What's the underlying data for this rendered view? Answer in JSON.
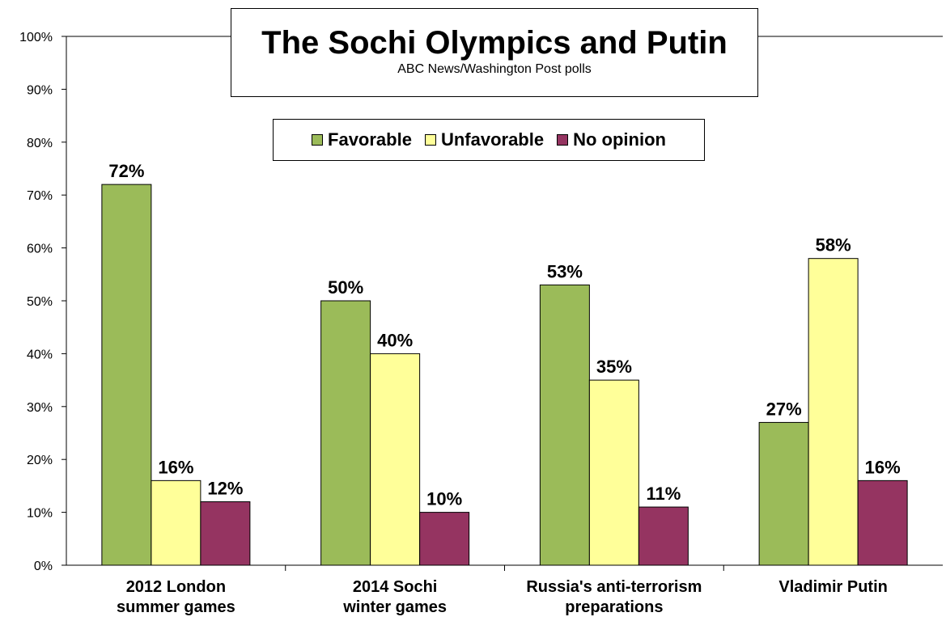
{
  "chart_data": {
    "type": "bar",
    "title": "The Sochi Olympics and Putin",
    "subtitle": "ABC News/Washington  Post polls",
    "categories": [
      [
        "2012 London",
        "summer games"
      ],
      [
        "2014 Sochi",
        "winter games"
      ],
      [
        "Russia's anti-terrorism",
        "preparations"
      ],
      [
        "Vladimir Putin"
      ]
    ],
    "series": [
      {
        "name": "Favorable",
        "color": "#9BBB59",
        "values": [
          72,
          50,
          53,
          27
        ]
      },
      {
        "name": "Unfavorable",
        "color": "#FFFF99",
        "values": [
          16,
          40,
          35,
          58
        ]
      },
      {
        "name": "No opinion",
        "color": "#953461",
        "values": [
          12,
          10,
          11,
          16
        ]
      }
    ],
    "data_label_suffix": "%",
    "yticks": [
      "0%",
      "10%",
      "20%",
      "30%",
      "40%",
      "50%",
      "60%",
      "70%",
      "80%",
      "90%",
      "100%"
    ],
    "ylim": [
      0,
      100
    ],
    "grid": false,
    "legend_position": "top-center"
  }
}
